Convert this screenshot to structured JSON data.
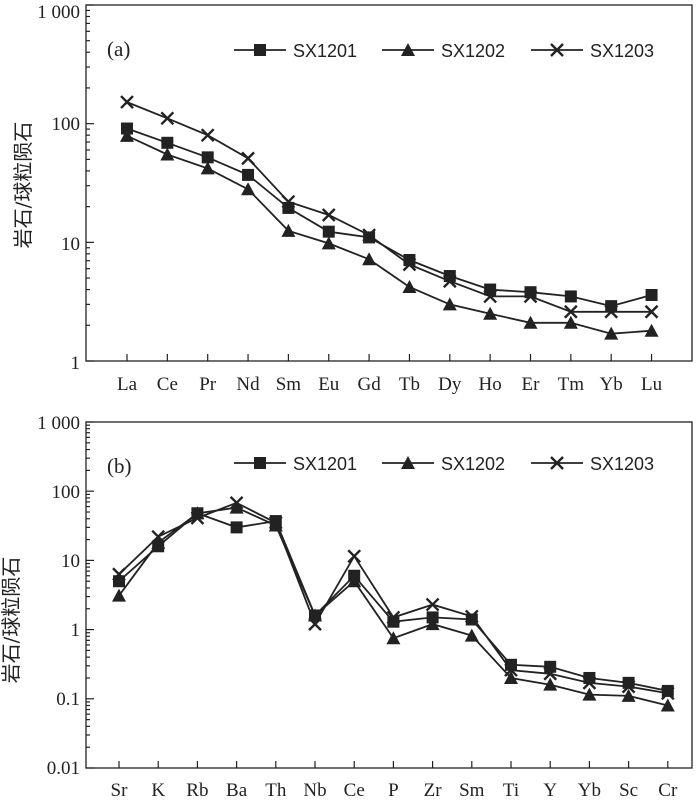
{
  "charts": [
    {
      "panel_label": "(a)",
      "ylabel": "岩石/球粒陨石",
      "yticks": [
        "1 000",
        "100",
        "10",
        "1"
      ],
      "legend": [
        "SX1201",
        "SX1202",
        "SX1203"
      ]
    },
    {
      "panel_label": "(b)",
      "ylabel": "岩石/球粒陨石",
      "yticks": [
        "1 000",
        "100",
        "10",
        "1",
        "0.1",
        "0.01"
      ],
      "legend": [
        "SX1201",
        "SX1202",
        "SX1203"
      ]
    }
  ],
  "chart_data": [
    {
      "type": "line",
      "title": "",
      "xlabel": "",
      "ylabel": "岩石/球粒陨石",
      "yscale": "log",
      "ylim": [
        1,
        1000
      ],
      "grid": false,
      "legend_position": "top-right",
      "categories": [
        "La",
        "Ce",
        "Pr",
        "Nd",
        "Sm",
        "Eu",
        "Gd",
        "Tb",
        "Dy",
        "Ho",
        "Er",
        "Tm",
        "Yb",
        "Lu"
      ],
      "series": [
        {
          "name": "SX1201",
          "marker": "square",
          "values": [
            91,
            69,
            52,
            37,
            19.5,
            12.3,
            11,
            7.1,
            5.2,
            4.0,
            3.8,
            3.5,
            2.9,
            3.6
          ]
        },
        {
          "name": "SX1202",
          "marker": "triangle",
          "values": [
            79,
            55,
            42,
            28,
            12.5,
            9.8,
            7.2,
            4.2,
            3.0,
            2.5,
            2.1,
            2.1,
            1.7,
            1.8
          ]
        },
        {
          "name": "SX1203",
          "marker": "x",
          "values": [
            152,
            111,
            80,
            51,
            22,
            17,
            11.5,
            6.5,
            4.7,
            3.5,
            3.5,
            2.6,
            2.6,
            2.6
          ]
        }
      ]
    },
    {
      "type": "line",
      "title": "",
      "xlabel": "",
      "ylabel": "岩石/球粒陨石",
      "yscale": "log",
      "ylim": [
        0.01,
        1000
      ],
      "grid": false,
      "legend_position": "top-right",
      "categories": [
        "Sr",
        "K",
        "Rb",
        "Ba",
        "Th",
        "Nb",
        "Ce",
        "P",
        "Zr",
        "Sm",
        "Ti",
        "Y",
        "Yb",
        "Sc",
        "Cr"
      ],
      "series": [
        {
          "name": "SX1201",
          "marker": "square",
          "values": [
            5.0,
            16,
            48,
            30,
            37,
            1.6,
            6.0,
            1.3,
            1.5,
            1.4,
            0.31,
            0.29,
            0.2,
            0.17,
            0.13
          ]
        },
        {
          "name": "SX1202",
          "marker": "triangle",
          "values": [
            3.1,
            18,
            48,
            58,
            32,
            1.6,
            5.0,
            0.75,
            1.2,
            0.82,
            0.2,
            0.16,
            0.115,
            0.11,
            0.08
          ]
        },
        {
          "name": "SX1203",
          "marker": "x",
          "values": [
            6.3,
            22,
            41,
            68,
            35,
            1.2,
            11.5,
            1.5,
            2.3,
            1.55,
            0.26,
            0.23,
            0.17,
            0.15,
            0.12
          ]
        }
      ]
    }
  ]
}
